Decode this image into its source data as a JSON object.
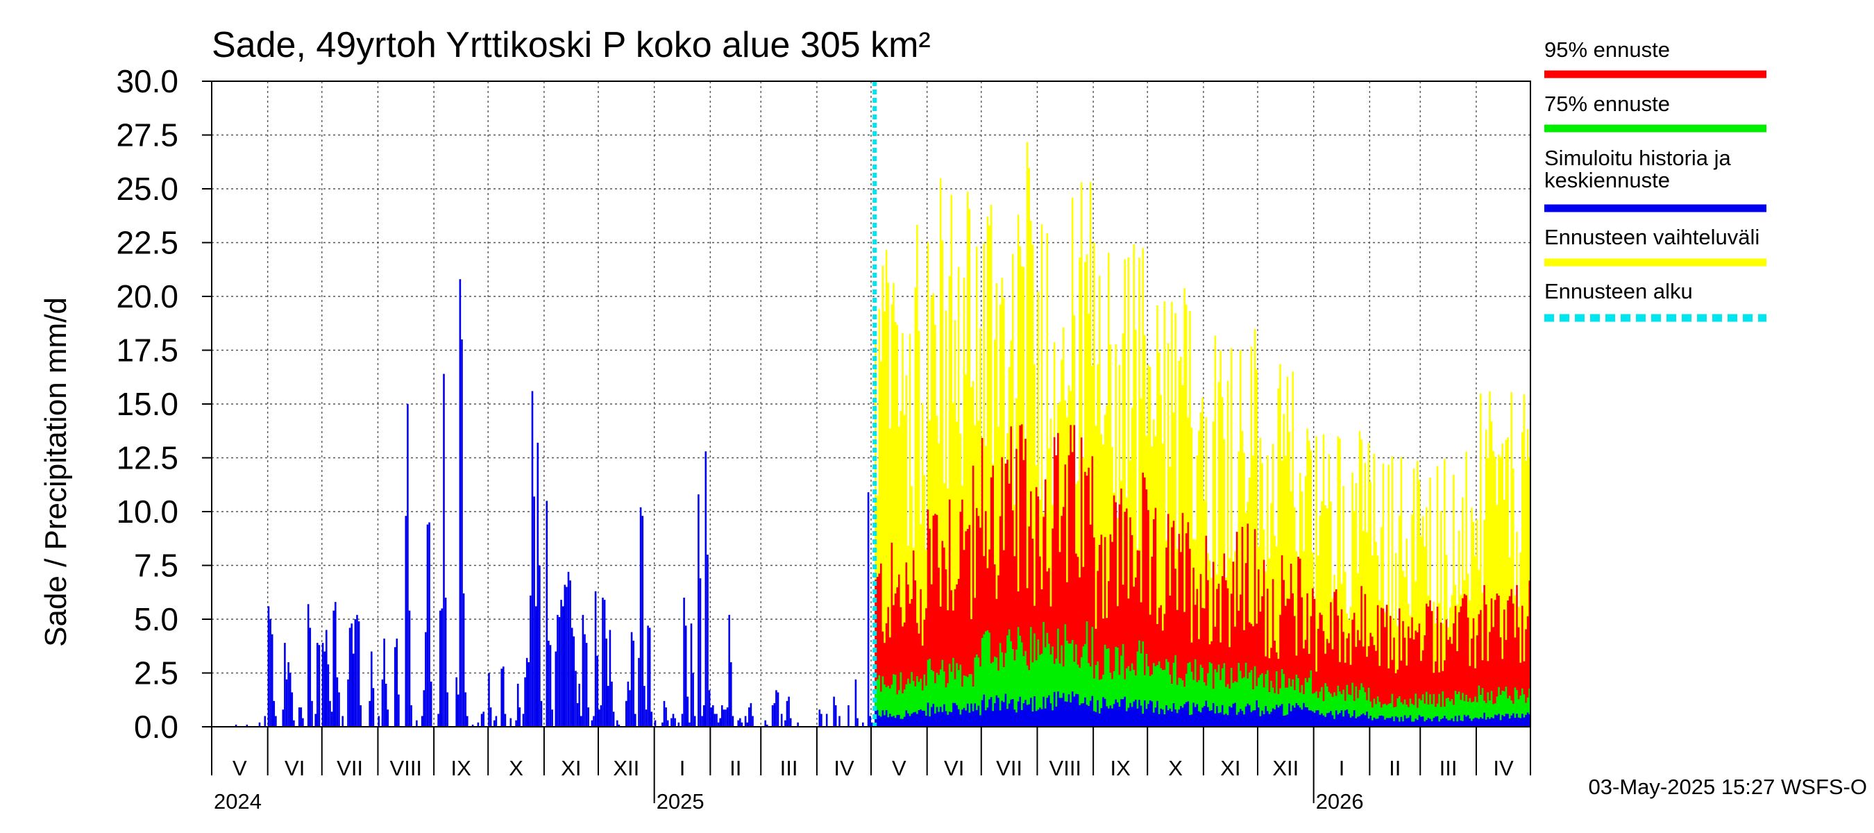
{
  "chart_data": {
    "type": "bar",
    "title": "Sade, 49yrtoh Yrttikoski P koko alue 305 km²",
    "ylabel": "Sade / Precipitation   mm/d",
    "ylim": [
      0,
      30
    ],
    "yticks": [
      "0.0",
      "2.5",
      "5.0",
      "7.5",
      "10.0",
      "12.5",
      "15.0",
      "17.5",
      "20.0",
      "22.5",
      "25.0",
      "27.5",
      "30.0"
    ],
    "grid": true,
    "legend_placement": "right",
    "x_start": "2024-05-01",
    "x_end": "2026-05-01",
    "forecast_start": "2025-05-03",
    "month_labels": [
      "V",
      "VI",
      "VII",
      "VIII",
      "IX",
      "X",
      "XI",
      "XII",
      "I",
      "II",
      "III",
      "IV",
      "V",
      "VI",
      "VII",
      "VIII",
      "IX",
      "X",
      "XI",
      "XII",
      "I",
      "II",
      "III",
      "IV"
    ],
    "year_labels": [
      "2024",
      "2025",
      "2026"
    ],
    "footer": "03-May-2025 15:27 WSFS-O",
    "legend": [
      {
        "label": "95% ennuste",
        "color": "#ff0000",
        "style": "solid"
      },
      {
        "label": "75% ennuste",
        "color": "#00ee00",
        "style": "solid"
      },
      {
        "label": "Simuloitu historia ja keskiennuste",
        "color": "#0000ee",
        "style": "solid"
      },
      {
        "label": "Ennusteen vaihteluväli",
        "color": "#ffff00",
        "style": "solid"
      },
      {
        "label": "Ennusteen alku",
        "color": "#00e5ee",
        "style": "dashed"
      }
    ],
    "colors": {
      "p95": "#ff0000",
      "p75": "#00ee00",
      "median": "#0000ee",
      "range": "#ffff00",
      "start": "#00e5ee"
    },
    "history_series": [
      {
        "date": "2024-05-14",
        "value": 0.1
      },
      {
        "date": "2024-05-20",
        "value": 0.1
      },
      {
        "date": "2024-05-27",
        "value": 0.2
      },
      {
        "date": "2024-05-30",
        "value": 0.5
      },
      {
        "date": "2024-06-01",
        "value": 5.6
      },
      {
        "date": "2024-06-02",
        "value": 5.0
      },
      {
        "date": "2024-06-03",
        "value": 4.3
      },
      {
        "date": "2024-06-04",
        "value": 1.2
      },
      {
        "date": "2024-06-05",
        "value": 0.5
      },
      {
        "date": "2024-06-09",
        "value": 0.8
      },
      {
        "date": "2024-06-10",
        "value": 3.9
      },
      {
        "date": "2024-06-11",
        "value": 2.2
      },
      {
        "date": "2024-06-12",
        "value": 3.0
      },
      {
        "date": "2024-06-13",
        "value": 2.5
      },
      {
        "date": "2024-06-14",
        "value": 1.6
      },
      {
        "date": "2024-06-15",
        "value": 0.3
      },
      {
        "date": "2024-06-18",
        "value": 0.9
      },
      {
        "date": "2024-06-19",
        "value": 0.9
      },
      {
        "date": "2024-06-20",
        "value": 0.4
      },
      {
        "date": "2024-06-23",
        "value": 5.7
      },
      {
        "date": "2024-06-24",
        "value": 4.6
      },
      {
        "date": "2024-06-25",
        "value": 1.2
      },
      {
        "date": "2024-06-27",
        "value": 0.6
      },
      {
        "date": "2024-06-28",
        "value": 3.9
      },
      {
        "date": "2024-06-29",
        "value": 3.8
      },
      {
        "date": "2024-07-01",
        "value": 3.9
      },
      {
        "date": "2024-07-02",
        "value": 3.5
      },
      {
        "date": "2024-07-03",
        "value": 4.5
      },
      {
        "date": "2024-07-04",
        "value": 2.9
      },
      {
        "date": "2024-07-05",
        "value": 1.2
      },
      {
        "date": "2024-07-06",
        "value": 0.7
      },
      {
        "date": "2024-07-07",
        "value": 5.4
      },
      {
        "date": "2024-07-08",
        "value": 5.8
      },
      {
        "date": "2024-07-09",
        "value": 2.3
      },
      {
        "date": "2024-07-10",
        "value": 1.6
      },
      {
        "date": "2024-07-12",
        "value": 0.5
      },
      {
        "date": "2024-07-15",
        "value": 2.2
      },
      {
        "date": "2024-07-16",
        "value": 4.6
      },
      {
        "date": "2024-07-17",
        "value": 4.8
      },
      {
        "date": "2024-07-18",
        "value": 3.4
      },
      {
        "date": "2024-07-19",
        "value": 5.0
      },
      {
        "date": "2024-07-20",
        "value": 5.2
      },
      {
        "date": "2024-07-21",
        "value": 4.9
      },
      {
        "date": "2024-07-22",
        "value": 1.0
      },
      {
        "date": "2024-07-27",
        "value": 1.2
      },
      {
        "date": "2024-07-28",
        "value": 3.5
      },
      {
        "date": "2024-07-29",
        "value": 1.8
      },
      {
        "date": "2024-08-01",
        "value": 0.5
      },
      {
        "date": "2024-08-03",
        "value": 2.2
      },
      {
        "date": "2024-08-04",
        "value": 4.1
      },
      {
        "date": "2024-08-05",
        "value": 2.0
      },
      {
        "date": "2024-08-06",
        "value": 0.8
      },
      {
        "date": "2024-08-10",
        "value": 3.7
      },
      {
        "date": "2024-08-11",
        "value": 4.1
      },
      {
        "date": "2024-08-12",
        "value": 1.5
      },
      {
        "date": "2024-08-16",
        "value": 9.8
      },
      {
        "date": "2024-08-17",
        "value": 15.0
      },
      {
        "date": "2024-08-18",
        "value": 5.4
      },
      {
        "date": "2024-08-19",
        "value": 1.0
      },
      {
        "date": "2024-08-22",
        "value": 0.3
      },
      {
        "date": "2024-08-25",
        "value": 0.5
      },
      {
        "date": "2024-08-26",
        "value": 1.7
      },
      {
        "date": "2024-08-27",
        "value": 4.4
      },
      {
        "date": "2024-08-28",
        "value": 9.4
      },
      {
        "date": "2024-08-29",
        "value": 9.5
      },
      {
        "date": "2024-08-30",
        "value": 2.1
      },
      {
        "date": "2024-09-03",
        "value": 0.6
      },
      {
        "date": "2024-09-04",
        "value": 5.4
      },
      {
        "date": "2024-09-05",
        "value": 5.5
      },
      {
        "date": "2024-09-06",
        "value": 16.4
      },
      {
        "date": "2024-09-07",
        "value": 6.0
      },
      {
        "date": "2024-09-08",
        "value": 1.6
      },
      {
        "date": "2024-09-13",
        "value": 2.3
      },
      {
        "date": "2024-09-14",
        "value": 1.5
      },
      {
        "date": "2024-09-15",
        "value": 20.8
      },
      {
        "date": "2024-09-16",
        "value": 18.0
      },
      {
        "date": "2024-09-17",
        "value": 6.2
      },
      {
        "date": "2024-09-18",
        "value": 1.6
      },
      {
        "date": "2024-09-19",
        "value": 0.5
      },
      {
        "date": "2024-09-22",
        "value": 0.1
      },
      {
        "date": "2024-09-25",
        "value": 0.2
      },
      {
        "date": "2024-09-27",
        "value": 0.6
      },
      {
        "date": "2024-09-28",
        "value": 0.7
      },
      {
        "date": "2024-10-01",
        "value": 2.5
      },
      {
        "date": "2024-10-02",
        "value": 0.9
      },
      {
        "date": "2024-10-04",
        "value": 0.3
      },
      {
        "date": "2024-10-05",
        "value": 0.5
      },
      {
        "date": "2024-10-08",
        "value": 2.7
      },
      {
        "date": "2024-10-09",
        "value": 2.8
      },
      {
        "date": "2024-10-10",
        "value": 0.6
      },
      {
        "date": "2024-10-13",
        "value": 0.4
      },
      {
        "date": "2024-10-16",
        "value": 0.3
      },
      {
        "date": "2024-10-17",
        "value": 2.0
      },
      {
        "date": "2024-10-18",
        "value": 0.9
      },
      {
        "date": "2024-10-20",
        "value": 0.6
      },
      {
        "date": "2024-10-21",
        "value": 2.3
      },
      {
        "date": "2024-10-22",
        "value": 3.2
      },
      {
        "date": "2024-10-23",
        "value": 3.0
      },
      {
        "date": "2024-10-24",
        "value": 6.1
      },
      {
        "date": "2024-10-25",
        "value": 15.6
      },
      {
        "date": "2024-10-26",
        "value": 10.7
      },
      {
        "date": "2024-10-27",
        "value": 5.6
      },
      {
        "date": "2024-10-28",
        "value": 13.2
      },
      {
        "date": "2024-10-29",
        "value": 7.5
      },
      {
        "date": "2024-10-30",
        "value": 1.2
      },
      {
        "date": "2024-11-02",
        "value": 10.5
      },
      {
        "date": "2024-11-03",
        "value": 4.0
      },
      {
        "date": "2024-11-04",
        "value": 3.8
      },
      {
        "date": "2024-11-05",
        "value": 0.8
      },
      {
        "date": "2024-11-07",
        "value": 3.5
      },
      {
        "date": "2024-11-08",
        "value": 5.2
      },
      {
        "date": "2024-11-09",
        "value": 5.1
      },
      {
        "date": "2024-11-10",
        "value": 5.9
      },
      {
        "date": "2024-11-11",
        "value": 5.6
      },
      {
        "date": "2024-11-12",
        "value": 6.6
      },
      {
        "date": "2024-11-13",
        "value": 6.5
      },
      {
        "date": "2024-11-14",
        "value": 7.2
      },
      {
        "date": "2024-11-15",
        "value": 6.8
      },
      {
        "date": "2024-11-16",
        "value": 4.6
      },
      {
        "date": "2024-11-17",
        "value": 4.2
      },
      {
        "date": "2024-11-18",
        "value": 2.6
      },
      {
        "date": "2024-11-19",
        "value": 1.1
      },
      {
        "date": "2024-11-20",
        "value": 2.0
      },
      {
        "date": "2024-11-21",
        "value": 0.5
      },
      {
        "date": "2024-11-22",
        "value": 5.2
      },
      {
        "date": "2024-11-23",
        "value": 4.3
      },
      {
        "date": "2024-11-24",
        "value": 3.9
      },
      {
        "date": "2024-11-25",
        "value": 0.9
      },
      {
        "date": "2024-11-27",
        "value": 0.3
      },
      {
        "date": "2024-11-28",
        "value": 0.5
      },
      {
        "date": "2024-11-29",
        "value": 6.3
      },
      {
        "date": "2024-11-30",
        "value": 3.3
      },
      {
        "date": "2024-12-01",
        "value": 0.8
      },
      {
        "date": "2024-12-02",
        "value": 1.0
      },
      {
        "date": "2024-12-03",
        "value": 6.0
      },
      {
        "date": "2024-12-04",
        "value": 5.9
      },
      {
        "date": "2024-12-05",
        "value": 4.1
      },
      {
        "date": "2024-12-06",
        "value": 1.9
      },
      {
        "date": "2024-12-07",
        "value": 4.5
      },
      {
        "date": "2024-12-08",
        "value": 2.1
      },
      {
        "date": "2024-12-09",
        "value": 0.7
      },
      {
        "date": "2024-12-11",
        "value": 0.3
      },
      {
        "date": "2024-12-12",
        "value": 0.1
      },
      {
        "date": "2024-12-16",
        "value": 1.2
      },
      {
        "date": "2024-12-17",
        "value": 2.1
      },
      {
        "date": "2024-12-18",
        "value": 1.7
      },
      {
        "date": "2024-12-19",
        "value": 4.4
      },
      {
        "date": "2024-12-20",
        "value": 4.0
      },
      {
        "date": "2024-12-21",
        "value": 0.6
      },
      {
        "date": "2024-12-23",
        "value": 3.2
      },
      {
        "date": "2024-12-24",
        "value": 10.2
      },
      {
        "date": "2024-12-25",
        "value": 9.8
      },
      {
        "date": "2024-12-26",
        "value": 1.9
      },
      {
        "date": "2024-12-27",
        "value": 0.8
      },
      {
        "date": "2024-12-28",
        "value": 4.7
      },
      {
        "date": "2024-12-29",
        "value": 4.6
      },
      {
        "date": "2024-12-30",
        "value": 0.7
      },
      {
        "date": "2025-01-01",
        "value": 0.3
      },
      {
        "date": "2025-01-05",
        "value": 0.2
      },
      {
        "date": "2025-01-06",
        "value": 1.2
      },
      {
        "date": "2025-01-07",
        "value": 0.9
      },
      {
        "date": "2025-01-08",
        "value": 0.3
      },
      {
        "date": "2025-01-10",
        "value": 0.4
      },
      {
        "date": "2025-01-11",
        "value": 0.6
      },
      {
        "date": "2025-01-12",
        "value": 0.4
      },
      {
        "date": "2025-01-14",
        "value": 0.2
      },
      {
        "date": "2025-01-16",
        "value": 0.6
      },
      {
        "date": "2025-01-17",
        "value": 6.0
      },
      {
        "date": "2025-01-18",
        "value": 4.7
      },
      {
        "date": "2025-01-19",
        "value": 1.4
      },
      {
        "date": "2025-01-20",
        "value": 0.2
      },
      {
        "date": "2025-01-21",
        "value": 4.8
      },
      {
        "date": "2025-01-22",
        "value": 2.5
      },
      {
        "date": "2025-01-23",
        "value": 0.5
      },
      {
        "date": "2025-01-25",
        "value": 10.8
      },
      {
        "date": "2025-01-26",
        "value": 6.9
      },
      {
        "date": "2025-01-27",
        "value": 0.5
      },
      {
        "date": "2025-01-28",
        "value": 1.0
      },
      {
        "date": "2025-01-29",
        "value": 12.8
      },
      {
        "date": "2025-01-30",
        "value": 8.0
      },
      {
        "date": "2025-01-31",
        "value": 1.7
      },
      {
        "date": "2025-02-01",
        "value": 0.9
      },
      {
        "date": "2025-02-02",
        "value": 1.0
      },
      {
        "date": "2025-02-03",
        "value": 0.6
      },
      {
        "date": "2025-02-04",
        "value": 0.6
      },
      {
        "date": "2025-02-05",
        "value": 0.2
      },
      {
        "date": "2025-02-06",
        "value": 0.4
      },
      {
        "date": "2025-02-07",
        "value": 1.0
      },
      {
        "date": "2025-02-08",
        "value": 0.8
      },
      {
        "date": "2025-02-09",
        "value": 0.8
      },
      {
        "date": "2025-02-10",
        "value": 0.9
      },
      {
        "date": "2025-02-11",
        "value": 5.2
      },
      {
        "date": "2025-02-12",
        "value": 3.0
      },
      {
        "date": "2025-02-13",
        "value": 0.5
      },
      {
        "date": "2025-02-16",
        "value": 0.3
      },
      {
        "date": "2025-02-17",
        "value": 0.4
      },
      {
        "date": "2025-02-18",
        "value": 0.2
      },
      {
        "date": "2025-02-20",
        "value": 0.5
      },
      {
        "date": "2025-02-21",
        "value": 0.2
      },
      {
        "date": "2025-02-22",
        "value": 0.9
      },
      {
        "date": "2025-02-23",
        "value": 1.1
      },
      {
        "date": "2025-02-24",
        "value": 0.5
      },
      {
        "date": "2025-03-03",
        "value": 0.3
      },
      {
        "date": "2025-03-04",
        "value": 0.1
      },
      {
        "date": "2025-03-07",
        "value": 1.0
      },
      {
        "date": "2025-03-08",
        "value": 1.1
      },
      {
        "date": "2025-03-09",
        "value": 1.7
      },
      {
        "date": "2025-03-10",
        "value": 1.6
      },
      {
        "date": "2025-03-12",
        "value": 0.6
      },
      {
        "date": "2025-03-14",
        "value": 0.3
      },
      {
        "date": "2025-03-15",
        "value": 1.2
      },
      {
        "date": "2025-03-16",
        "value": 1.4
      },
      {
        "date": "2025-03-17",
        "value": 0.4
      },
      {
        "date": "2025-03-21",
        "value": 0.2
      },
      {
        "date": "2025-04-02",
        "value": 0.8
      },
      {
        "date": "2025-04-03",
        "value": 0.6
      },
      {
        "date": "2025-04-06",
        "value": 0.6
      },
      {
        "date": "2025-04-10",
        "value": 1.4
      },
      {
        "date": "2025-04-11",
        "value": 1.0
      },
      {
        "date": "2025-04-13",
        "value": 0.5
      },
      {
        "date": "2025-04-18",
        "value": 1.0
      },
      {
        "date": "2025-04-22",
        "value": 2.2
      },
      {
        "date": "2025-04-23",
        "value": 0.4
      },
      {
        "date": "2025-04-26",
        "value": 0.2
      },
      {
        "date": "2025-04-29",
        "value": 10.9
      },
      {
        "date": "2025-04-30",
        "value": 0.5
      },
      {
        "date": "2025-05-01",
        "value": 0.2
      }
    ],
    "forecast_monthly": [
      {
        "month": "2025-05",
        "range": 18,
        "p95": 6.0,
        "p75": 2.0,
        "median": 0.6
      },
      {
        "month": "2025-06",
        "range": 20,
        "p95": 8.5,
        "p75": 2.6,
        "median": 0.8
      },
      {
        "month": "2025-07",
        "range": 21,
        "p95": 9.8,
        "p75": 3.6,
        "median": 1.1
      },
      {
        "month": "2025-08",
        "range": 20,
        "p95": 9.9,
        "p75": 3.9,
        "median": 1.2
      },
      {
        "month": "2025-09",
        "range": 18,
        "p95": 8.2,
        "p75": 3.1,
        "median": 1.0
      },
      {
        "month": "2025-10",
        "range": 16,
        "p95": 7.1,
        "p75": 2.6,
        "median": 0.9
      },
      {
        "month": "2025-11",
        "range": 15,
        "p95": 6.6,
        "p75": 2.4,
        "median": 0.9
      },
      {
        "month": "2025-12",
        "range": 13,
        "p95": 5.6,
        "p75": 2.1,
        "median": 0.8
      },
      {
        "month": "2026-01",
        "range": 11,
        "p95": 4.6,
        "p75": 1.6,
        "median": 0.6
      },
      {
        "month": "2026-02",
        "range": 10,
        "p95": 4.0,
        "p75": 1.2,
        "median": 0.4
      },
      {
        "month": "2026-03",
        "range": 10,
        "p95": 4.3,
        "p75": 1.3,
        "median": 0.4
      },
      {
        "month": "2026-04",
        "range": 12,
        "p95": 4.7,
        "p75": 1.5,
        "median": 0.5
      }
    ]
  }
}
